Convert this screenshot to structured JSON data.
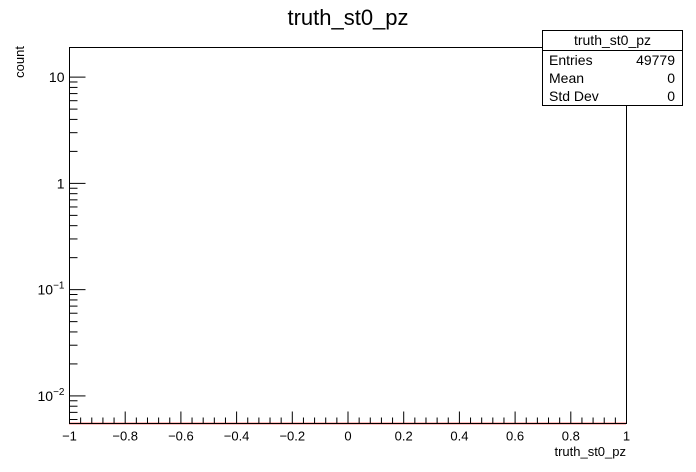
{
  "chart_data": {
    "type": "histogram",
    "title": "truth_st0_pz",
    "xlabel": "truth_st0_pz",
    "ylabel": "count",
    "xlim": [
      -1,
      1
    ],
    "ylim": [
      0.0055,
      19
    ],
    "y_scale": "log",
    "x_ticks": [
      "−1",
      "−0.8",
      "−0.6",
      "−0.4",
      "−0.2",
      "0",
      "0.2",
      "0.4",
      "0.6",
      "0.8",
      "1"
    ],
    "x_tick_values": [
      -1,
      -0.8,
      -0.6,
      -0.4,
      -0.2,
      0,
      0.2,
      0.4,
      0.6,
      0.8,
      1
    ],
    "y_ticks": [
      {
        "value": 0.01,
        "base": "10",
        "exp": "−2"
      },
      {
        "value": 0.1,
        "base": "10",
        "exp": "−1"
      },
      {
        "value": 1,
        "label": "1"
      },
      {
        "value": 10,
        "label": "10"
      }
    ],
    "series": [
      {
        "color": "#ff0000",
        "bins": [],
        "values": []
      }
    ],
    "stats": {
      "title": "truth_st0_pz",
      "rows": [
        {
          "label": "Entries",
          "value": "49779"
        },
        {
          "label": "Mean",
          "value": "0"
        },
        {
          "label": "Std Dev",
          "value": "0"
        }
      ]
    },
    "grid": false,
    "legend": "top-right"
  }
}
